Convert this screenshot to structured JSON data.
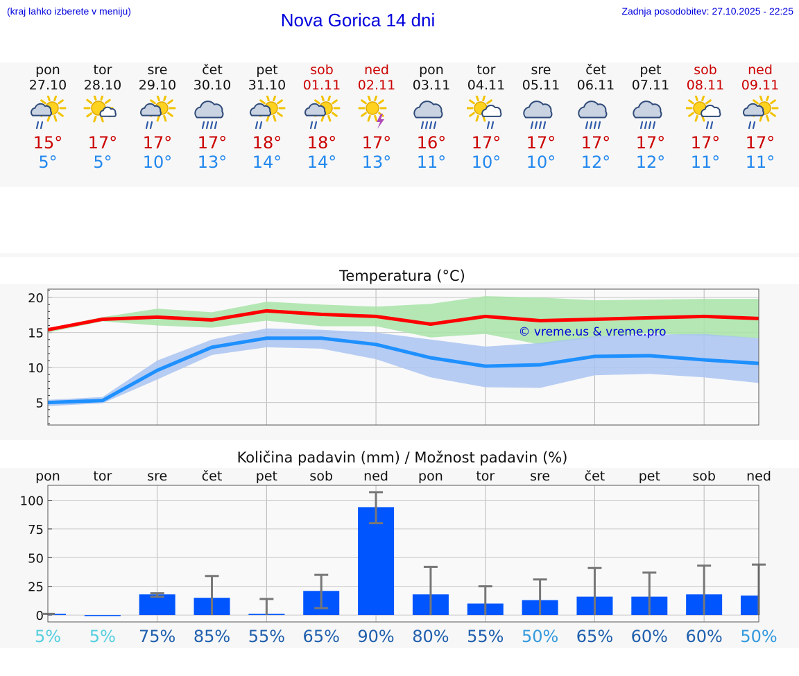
{
  "header": {
    "hint": "(kraj lahko izberete v meniju)",
    "title": "Nova Gorica 14 dni",
    "updated": "Zadnja posodobitev: 27.10.2025 - 22:25"
  },
  "colors": {
    "accent_blue": "#0000dd",
    "max_temp": "#cc0000",
    "min_temp": "#2288ee",
    "bar": "#0055ff",
    "max_line": "#ff0000",
    "min_line": "#1e90ff",
    "max_band": "#a8e4a8",
    "min_band": "#aac4f2"
  },
  "days": [
    {
      "name": "pon",
      "date": "27.10",
      "weekend": false,
      "icon": "partly-sunny-rain-icon",
      "tmax": "15°",
      "tmin": "5°"
    },
    {
      "name": "tor",
      "date": "28.10",
      "weekend": false,
      "icon": "sun-cloud-icon",
      "tmax": "17°",
      "tmin": "5°"
    },
    {
      "name": "sre",
      "date": "29.10",
      "weekend": false,
      "icon": "partly-sunny-rain-icon",
      "tmax": "17°",
      "tmin": "10°"
    },
    {
      "name": "čet",
      "date": "30.10",
      "weekend": false,
      "icon": "cloud-rain-icon",
      "tmax": "17°",
      "tmin": "13°"
    },
    {
      "name": "pet",
      "date": "31.10",
      "weekend": false,
      "icon": "partly-sunny-rain-icon",
      "tmax": "18°",
      "tmin": "14°"
    },
    {
      "name": "sob",
      "date": "01.11",
      "weekend": true,
      "icon": "partly-sunny-rain-icon",
      "tmax": "18°",
      "tmin": "14°"
    },
    {
      "name": "ned",
      "date": "02.11",
      "weekend": true,
      "icon": "sun-thunder-icon",
      "tmax": "17°",
      "tmin": "13°"
    },
    {
      "name": "pon",
      "date": "03.11",
      "weekend": false,
      "icon": "cloud-rain-icon",
      "tmax": "16°",
      "tmin": "11°"
    },
    {
      "name": "tor",
      "date": "04.11",
      "weekend": false,
      "icon": "sun-cloud-rain-icon",
      "tmax": "17°",
      "tmin": "10°"
    },
    {
      "name": "sre",
      "date": "05.11",
      "weekend": false,
      "icon": "cloud-rain-icon",
      "tmax": "17°",
      "tmin": "10°"
    },
    {
      "name": "čet",
      "date": "06.11",
      "weekend": false,
      "icon": "cloud-rain-icon",
      "tmax": "17°",
      "tmin": "12°"
    },
    {
      "name": "pet",
      "date": "07.11",
      "weekend": false,
      "icon": "cloud-rain-icon",
      "tmax": "17°",
      "tmin": "12°"
    },
    {
      "name": "sob",
      "date": "08.11",
      "weekend": true,
      "icon": "sun-cloud-rain-icon",
      "tmax": "17°",
      "tmin": "11°"
    },
    {
      "name": "ned",
      "date": "09.11",
      "weekend": true,
      "icon": "partly-sunny-rain-icon",
      "tmax": "17°",
      "tmin": "11°"
    }
  ],
  "chart_data": [
    {
      "type": "line",
      "title": "Temperatura (°C)",
      "watermark": "© vreme.us & vreme.pro",
      "x": [
        "pon 27.10",
        "tor 28.10",
        "sre 29.10",
        "čet 30.10",
        "pet 31.10",
        "sob 01.11",
        "ned 02.11",
        "pon 03.11",
        "tor 04.11",
        "sre 05.11",
        "čet 06.11",
        "pet 07.11",
        "sob 08.11",
        "ned 09.11"
      ],
      "ylim": [
        1.8,
        21.2
      ],
      "yticks": [
        5,
        10,
        15,
        20
      ],
      "grid": true,
      "series": [
        {
          "values": [
            15.4,
            16.9,
            17.2,
            16.8,
            18.1,
            17.6,
            17.3,
            16.2,
            17.3,
            16.7,
            16.9,
            17.1,
            17.3,
            17.0
          ],
          "band_high": [
            15.6,
            17.2,
            18.4,
            17.9,
            19.4,
            19.0,
            18.7,
            19.1,
            20.2,
            20.0,
            19.6,
            19.7,
            19.8,
            19.8
          ],
          "band_low": [
            15.0,
            16.6,
            16.0,
            15.7,
            16.7,
            15.9,
            15.9,
            14.3,
            14.8,
            13.3,
            14.3,
            14.9,
            14.5,
            14.2
          ]
        },
        {
          "values": [
            5.0,
            5.3,
            9.6,
            12.9,
            14.2,
            14.2,
            13.3,
            11.4,
            10.2,
            10.4,
            11.6,
            11.7,
            11.1,
            10.6
          ],
          "band_high": [
            5.4,
            5.8,
            11.0,
            14.0,
            15.6,
            15.4,
            15.0,
            14.0,
            13.0,
            13.5,
            14.5,
            14.7,
            14.8,
            14.2
          ],
          "band_low": [
            4.5,
            4.9,
            8.3,
            11.8,
            12.9,
            12.7,
            11.2,
            8.6,
            7.2,
            7.1,
            8.9,
            9.1,
            8.6,
            7.8
          ]
        }
      ]
    },
    {
      "type": "bar",
      "title": "Količina padavin (mm) / Možnost padavin (%)",
      "categories": [
        "pon",
        "tor",
        "sre",
        "čet",
        "pet",
        "sob",
        "ned",
        "pon",
        "tor",
        "sre",
        "čet",
        "pet",
        "sob",
        "ned"
      ],
      "values": [
        1,
        0,
        18,
        15,
        1,
        21,
        94,
        18,
        10,
        13,
        16,
        16,
        18,
        17
      ],
      "err_low": [
        0,
        0,
        16,
        0,
        0,
        6,
        80,
        0,
        0,
        0,
        0,
        0,
        0,
        0
      ],
      "err_high": [
        1,
        0,
        19,
        34,
        14,
        35,
        107,
        42,
        25,
        31,
        41,
        37,
        43,
        44
      ],
      "ylim": [
        -6,
        113
      ],
      "yticks": [
        0,
        25,
        50,
        75,
        100
      ],
      "grid": true,
      "probability": [
        "5%",
        "5%",
        "75%",
        "85%",
        "55%",
        "65%",
        "90%",
        "80%",
        "55%",
        "50%",
        "65%",
        "60%",
        "60%",
        "50%"
      ],
      "probability_values": [
        5,
        5,
        75,
        85,
        55,
        65,
        90,
        80,
        55,
        50,
        65,
        60,
        60,
        50
      ]
    }
  ]
}
